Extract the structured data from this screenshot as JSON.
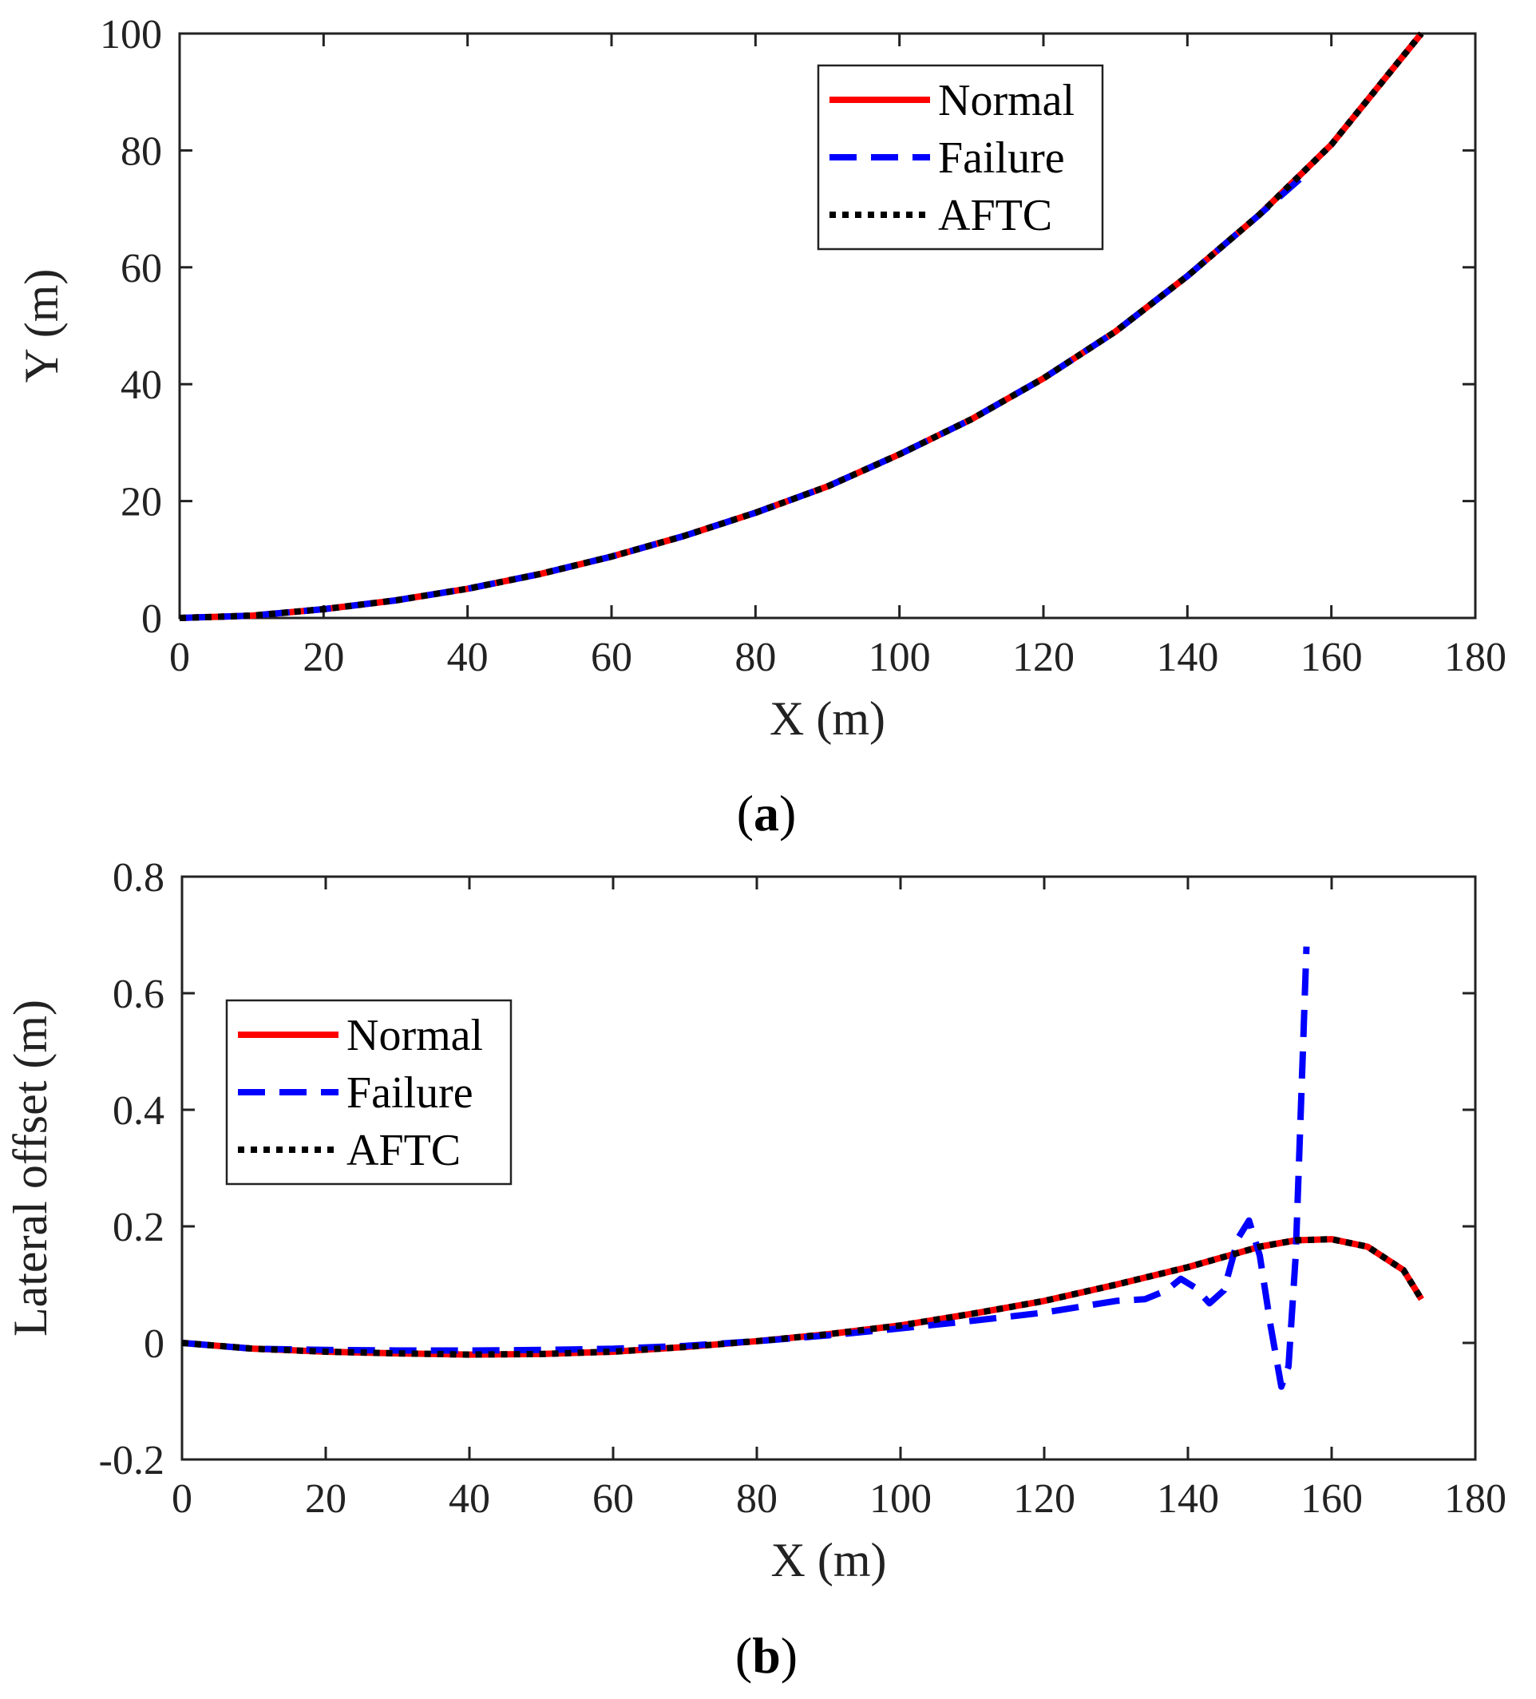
{
  "colors": {
    "normal": "#ff0000",
    "failure": "#0000ff",
    "aftc": "#000000",
    "axis": "#222222"
  },
  "chart_data": [
    {
      "type": "line",
      "caption": "a",
      "xlabel": "X (m)",
      "ylabel": "Y (m)",
      "xlim": [
        0,
        180
      ],
      "ylim": [
        0,
        100
      ],
      "xticks": [
        "0",
        "20",
        "40",
        "60",
        "80",
        "100",
        "120",
        "140",
        "160",
        "180"
      ],
      "yticks": [
        "0",
        "20",
        "40",
        "60",
        "80",
        "100"
      ],
      "grid": false,
      "legend_position": "top-right",
      "series": [
        {
          "name": "Normal",
          "style": "solid",
          "color": "#ff0000",
          "x": [
            0,
            10,
            20,
            30,
            40,
            50,
            60,
            70,
            80,
            90,
            100,
            110,
            120,
            130,
            140,
            150,
            160,
            172.5
          ],
          "y": [
            0,
            0.4,
            1.5,
            3.0,
            5.0,
            7.5,
            10.5,
            14.0,
            18.0,
            22.5,
            28.0,
            34.0,
            41.0,
            49.0,
            58.5,
            69.0,
            81.0,
            100.0
          ]
        },
        {
          "name": "Failure",
          "style": "dashed",
          "color": "#0000ff",
          "x": [
            0,
            10,
            20,
            30,
            40,
            50,
            60,
            70,
            80,
            90,
            100,
            110,
            120,
            130,
            140,
            150,
            156
          ],
          "y": [
            0,
            0.4,
            1.5,
            3.0,
            5.0,
            7.5,
            10.5,
            14.0,
            18.0,
            22.5,
            28.0,
            34.0,
            41.0,
            49.0,
            58.5,
            69.0,
            75.5
          ]
        },
        {
          "name": "AFTC",
          "style": "dotted",
          "color": "#000000",
          "x": [
            0,
            10,
            20,
            30,
            40,
            50,
            60,
            70,
            80,
            90,
            100,
            110,
            120,
            130,
            140,
            150,
            160,
            172.5
          ],
          "y": [
            0,
            0.4,
            1.5,
            3.0,
            5.0,
            7.5,
            10.5,
            14.0,
            18.0,
            22.5,
            28.0,
            34.0,
            41.0,
            49.0,
            58.5,
            69.0,
            81.0,
            100.0
          ]
        }
      ]
    },
    {
      "type": "line",
      "caption": "b",
      "xlabel": "X (m)",
      "ylabel": "Lateral offset (m)",
      "xlim": [
        0,
        180
      ],
      "ylim": [
        -0.2,
        0.8
      ],
      "xticks": [
        "0",
        "20",
        "40",
        "60",
        "80",
        "100",
        "120",
        "140",
        "160",
        "180"
      ],
      "yticks": [
        "-0.2",
        "0",
        "0.2",
        "0.4",
        "0.6",
        "0.8"
      ],
      "grid": false,
      "legend_position": "top-left",
      "series": [
        {
          "name": "Normal",
          "style": "solid",
          "color": "#ff0000",
          "x": [
            0,
            10,
            20,
            30,
            40,
            50,
            60,
            70,
            80,
            90,
            100,
            110,
            120,
            130,
            140,
            150,
            155,
            160,
            165,
            170,
            172.5
          ],
          "y": [
            0,
            -0.01,
            -0.015,
            -0.018,
            -0.02,
            -0.019,
            -0.015,
            -0.007,
            0.003,
            0.015,
            0.03,
            0.05,
            0.072,
            0.1,
            0.13,
            0.165,
            0.176,
            0.178,
            0.165,
            0.125,
            0.075
          ]
        },
        {
          "name": "Failure",
          "style": "dashed",
          "color": "#0000ff",
          "x": [
            0,
            10,
            20,
            30,
            40,
            50,
            60,
            70,
            80,
            90,
            100,
            110,
            120,
            130,
            134,
            137,
            139,
            141,
            143,
            145,
            147,
            148.5,
            150,
            151.5,
            153,
            154,
            155,
            156,
            156.5
          ],
          "y": [
            0,
            -0.01,
            -0.012,
            -0.013,
            -0.013,
            -0.012,
            -0.01,
            -0.005,
            0.003,
            0.013,
            0.025,
            0.038,
            0.052,
            0.072,
            0.075,
            0.09,
            0.11,
            0.095,
            0.068,
            0.09,
            0.18,
            0.21,
            0.15,
            0.03,
            -0.075,
            -0.04,
            0.15,
            0.5,
            0.68
          ]
        },
        {
          "name": "AFTC",
          "style": "dotted",
          "color": "#000000",
          "x": [
            0,
            10,
            20,
            30,
            40,
            50,
            60,
            70,
            80,
            90,
            100,
            110,
            120,
            130,
            140,
            150,
            155,
            160,
            165,
            170,
            172.5
          ],
          "y": [
            0,
            -0.01,
            -0.015,
            -0.018,
            -0.02,
            -0.019,
            -0.015,
            -0.007,
            0.003,
            0.015,
            0.03,
            0.05,
            0.072,
            0.1,
            0.13,
            0.165,
            0.176,
            0.178,
            0.165,
            0.125,
            0.075
          ]
        }
      ]
    }
  ]
}
